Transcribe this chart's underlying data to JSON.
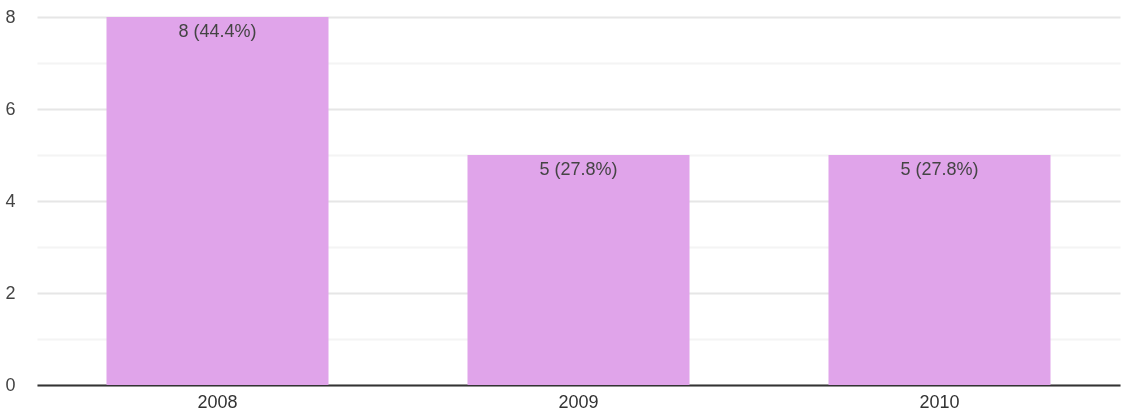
{
  "chart_data": {
    "type": "bar",
    "categories": [
      "2008",
      "2009",
      "2010"
    ],
    "values": [
      8,
      5,
      5
    ],
    "value_labels": [
      "8 (44.4%)",
      "5 (27.8%)",
      "5 (27.8%)"
    ],
    "color": "#e0a4ea",
    "ylim": [
      0,
      8
    ],
    "yticks": [
      0,
      {
        "value": 1,
        "label": null
      },
      2,
      {
        "value": 3,
        "label": null
      },
      4,
      {
        "value": 5,
        "label": null
      },
      6,
      {
        "value": 7,
        "label": null
      },
      8
    ],
    "grid": "y"
  }
}
